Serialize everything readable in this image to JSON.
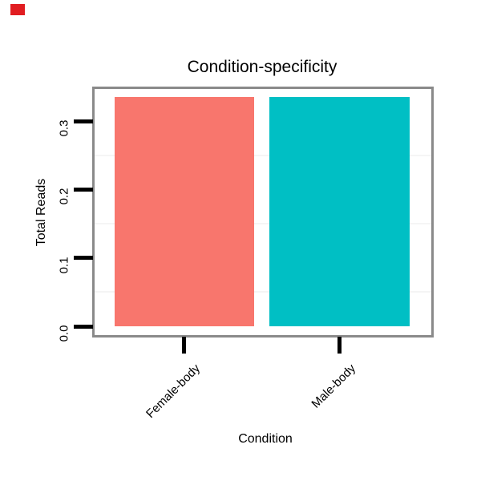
{
  "corner_marker": {
    "color": "#E11D21"
  },
  "chart_data": {
    "type": "bar",
    "title": "Condition-specificity",
    "xlabel": "Condition",
    "ylabel": "Total Reads",
    "categories": [
      "Female-body",
      "Male-body"
    ],
    "values": [
      0.335,
      0.335
    ],
    "bar_colors": [
      "#F8766D",
      "#00BFC4"
    ],
    "ytick_labels": [
      "0.0",
      "0.1",
      "0.2",
      "0.3"
    ],
    "ytick_values": [
      0,
      0.1,
      0.2,
      0.3
    ],
    "minor_gridline_values": [
      0.05,
      0.15,
      0.25
    ],
    "ylim": [
      -0.013,
      0.35
    ],
    "grid": "minor horizontal only",
    "legend_position": "none",
    "x_tick_label_rotation_deg": 45,
    "y_tick_label_rotation_deg": 90,
    "panel_border_color": "#8A8A8A",
    "minor_gridline_color": "#F5F5F5",
    "tick_color": "#000000",
    "text_color": "#000000",
    "background_color": "#FFFFFF"
  }
}
